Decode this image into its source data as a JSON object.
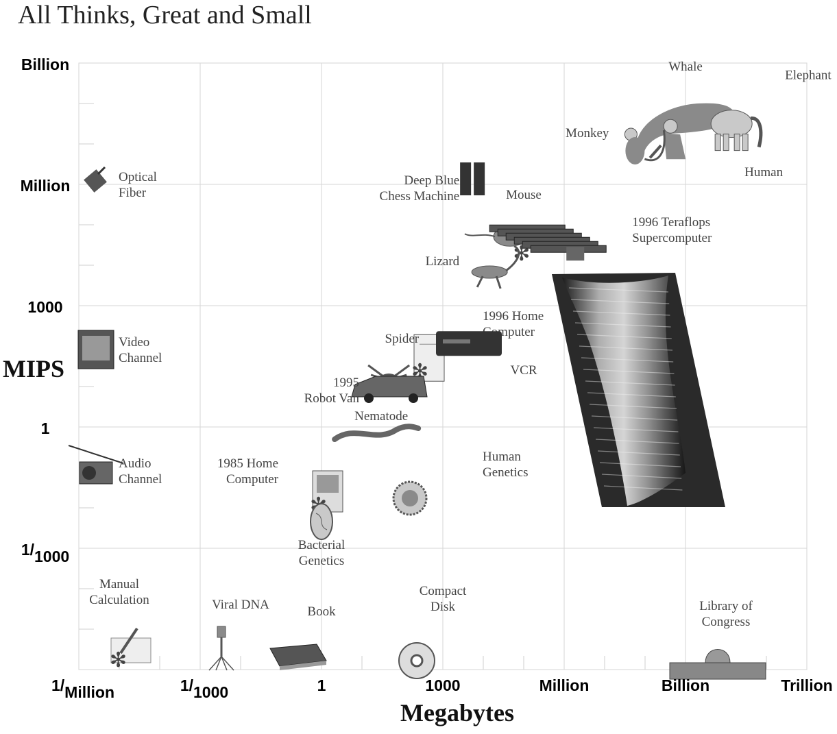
{
  "chart_data": {
    "type": "scatter",
    "title": "All Thinks, Great and Small",
    "xlabel": "Megabytes",
    "ylabel": "MIPS",
    "x_scale": "log10",
    "y_scale": "log10",
    "xlim": [
      1e-06,
      1000000000000.0
    ],
    "ylim": [
      1e-06,
      1000000000.0
    ],
    "grid": true,
    "x_ticks": [
      {
        "value": 1e-06,
        "main": "1/",
        "sub": "Million"
      },
      {
        "value": 0.001,
        "main": "1/",
        "sub": "1000"
      },
      {
        "value": 1,
        "main": "1",
        "sub": ""
      },
      {
        "value": 1000.0,
        "main": "1000",
        "sub": ""
      },
      {
        "value": 1000000.0,
        "main": "Million",
        "sub": ""
      },
      {
        "value": 1000000000.0,
        "main": "Billion",
        "sub": ""
      },
      {
        "value": 1000000000000.0,
        "main": "Trillion",
        "sub": ""
      }
    ],
    "y_ticks": [
      {
        "value": 0.001,
        "main": "1/",
        "sub": "1000"
      },
      {
        "value": 1,
        "main": "1",
        "sub": ""
      },
      {
        "value": 1000.0,
        "main": "1000",
        "sub": ""
      },
      {
        "value": 1000000.0,
        "main": "Million",
        "sub": ""
      },
      {
        "value": 1000000000.0,
        "main": "Billion",
        "sub": ""
      }
    ],
    "points": [
      {
        "label": [
          "Whale"
        ],
        "x": 1000000000.0,
        "y": 300000000.0,
        "icon": "whale-icon",
        "anchor": "middle"
      },
      {
        "label": [
          "Elephant"
        ],
        "x": 30000000000.0,
        "y": 150000000.0,
        "icon": "elephant-icon",
        "anchor": "start"
      },
      {
        "label": [
          "Human"
        ],
        "x": 3000000000.0,
        "y": 20000000.0,
        "icon": "human-icon",
        "anchor": "start"
      },
      {
        "label": [
          "Monkey"
        ],
        "x": 15000000.0,
        "y": 10000000.0,
        "icon": "monkey-icon",
        "anchor": "end"
      },
      {
        "label": [
          "Deep Blue",
          "Chess Machine"
        ],
        "x": 3000.0,
        "y": 1000000.0,
        "icon": "chess-machine-icon",
        "anchor": "end"
      },
      {
        "label": [
          "Mouse"
        ],
        "x": 100000.0,
        "y": 200000.0,
        "icon": "mouse-icon",
        "anchor": "middle"
      },
      {
        "label": [
          "1996 Teraflops",
          "Supercomputer"
        ],
        "x": 5000000.0,
        "y": 200000.0,
        "icon": "supercomputer-icon",
        "anchor": "start",
        "star": true
      },
      {
        "label": [
          "Optical",
          "Fiber"
        ],
        "x": 1e-06,
        "y": 1000000.0,
        "icon": "optical-fiber-icon",
        "anchor": "start"
      },
      {
        "label": [
          "Lizard"
        ],
        "x": 3000.0,
        "y": 10000.0,
        "icon": "lizard-icon",
        "anchor": "end"
      },
      {
        "label": [
          "1996 Home",
          "Computer"
        ],
        "x": 1000.0,
        "y": 200.0,
        "icon": "home-computer-1996-icon",
        "anchor": "start",
        "star": true
      },
      {
        "label": [
          "Spider"
        ],
        "x": 300.0,
        "y": 100.0,
        "icon": "spider-icon",
        "anchor": "end"
      },
      {
        "label": [
          "VCR"
        ],
        "x": 100000.0,
        "y": 20.0,
        "icon": "vcr-icon",
        "anchor": "middle"
      },
      {
        "label": [
          "Video",
          "Channel"
        ],
        "x": 1e-06,
        "y": 100.0,
        "icon": "video-channel-icon",
        "anchor": "start"
      },
      {
        "label": [
          "1995",
          "Robot Van"
        ],
        "x": 10,
        "y": 10.0,
        "icon": "robot-van-icon",
        "anchor": "end"
      },
      {
        "label": [
          "Nematode"
        ],
        "x": 30,
        "y": 1,
        "icon": "nematode-icon",
        "anchor": "middle"
      },
      {
        "label": [
          "1985 Home",
          "Computer"
        ],
        "x": 0.1,
        "y": 0.1,
        "icon": "home-computer-1985-icon",
        "anchor": "end",
        "star": true
      },
      {
        "label": [
          "Human",
          "Genetics"
        ],
        "x": 1000.0,
        "y": 0.1,
        "icon": "human-genetics-icon",
        "anchor": "start"
      },
      {
        "label": [
          "Audio",
          "Channel"
        ],
        "x": 1e-06,
        "y": 0.1,
        "icon": "audio-channel-icon",
        "anchor": "start"
      },
      {
        "label": [
          "Bacterial",
          "Genetics"
        ],
        "x": 1,
        "y": 0.01,
        "icon": "bacterial-genetics-icon",
        "anchor": "middle"
      },
      {
        "label": [
          "Manual",
          "Calculation"
        ],
        "x": 1e-05,
        "y": 1e-05,
        "icon": "manual-calculation-icon",
        "anchor": "middle",
        "star": true
      },
      {
        "label": [
          "Viral DNA"
        ],
        "x": 0.01,
        "y": 1e-05,
        "icon": "viral-dna-icon",
        "anchor": "middle"
      },
      {
        "label": [
          "Book"
        ],
        "x": 1,
        "y": 1e-05,
        "icon": "book-icon",
        "anchor": "middle"
      },
      {
        "label": [
          "Compact",
          "Disk"
        ],
        "x": 1000.0,
        "y": 1e-05,
        "icon": "compact-disk-icon",
        "anchor": "middle"
      },
      {
        "label": [
          "Library of",
          "Congress"
        ],
        "x": 10000000000.0,
        "y": 1e-05,
        "icon": "library-icon",
        "anchor": "middle"
      }
    ]
  }
}
